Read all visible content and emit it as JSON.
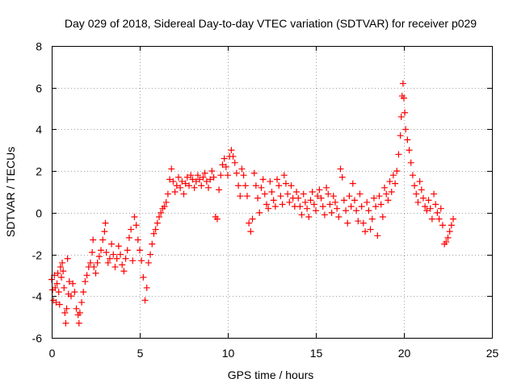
{
  "chart_data": {
    "type": "scatter",
    "title": "Day 029 of 2018, Sidereal Day-to-day VTEC variation (SDTVAR) for receiver p029",
    "xlabel": "GPS time / hours",
    "ylabel": "SDTVAR / TECUs",
    "xlim": [
      0,
      25
    ],
    "ylim": [
      -6,
      8
    ],
    "xticks": [
      0,
      5,
      10,
      15,
      20,
      25
    ],
    "yticks": [
      -6,
      -4,
      -2,
      0,
      2,
      4,
      6,
      8
    ],
    "grid": true,
    "marker": "+",
    "color": "#ff0000",
    "series": [
      {
        "name": "SDTVAR",
        "points": [
          [
            0.0,
            -3.2
          ],
          [
            0.05,
            -3.7
          ],
          [
            0.1,
            -4.2
          ],
          [
            0.15,
            -3.0
          ],
          [
            0.2,
            -3.6
          ],
          [
            0.25,
            -4.3
          ],
          [
            0.3,
            -3.4
          ],
          [
            0.35,
            -2.9
          ],
          [
            0.4,
            -3.8
          ],
          [
            0.45,
            -4.4
          ],
          [
            0.5,
            -2.6
          ],
          [
            0.55,
            -3.1
          ],
          [
            0.6,
            -2.4
          ],
          [
            0.65,
            -2.8
          ],
          [
            0.7,
            -3.6
          ],
          [
            0.75,
            -4.8
          ],
          [
            0.8,
            -5.3
          ],
          [
            0.85,
            -4.6
          ],
          [
            0.9,
            -2.2
          ],
          [
            0.95,
            -3.9
          ],
          [
            1.0,
            -3.3
          ],
          [
            1.1,
            -4.0
          ],
          [
            1.2,
            -3.4
          ],
          [
            1.3,
            -3.8
          ],
          [
            1.4,
            -4.6
          ],
          [
            1.5,
            -4.9
          ],
          [
            1.55,
            -5.3
          ],
          [
            1.6,
            -4.8
          ],
          [
            1.7,
            -4.3
          ],
          [
            1.8,
            -3.8
          ],
          [
            1.9,
            -3.3
          ],
          [
            2.0,
            -3.0
          ],
          [
            2.1,
            -2.6
          ],
          [
            2.2,
            -2.4
          ],
          [
            2.3,
            -1.9
          ],
          [
            2.35,
            -1.3
          ],
          [
            2.4,
            -2.6
          ],
          [
            2.5,
            -2.9
          ],
          [
            2.6,
            -2.4
          ],
          [
            2.7,
            -2.1
          ],
          [
            2.8,
            -1.8
          ],
          [
            2.9,
            -1.3
          ],
          [
            3.0,
            -0.9
          ],
          [
            3.05,
            -0.5
          ],
          [
            3.1,
            -1.9
          ],
          [
            3.2,
            -2.4
          ],
          [
            3.3,
            -2.2
          ],
          [
            3.4,
            -1.5
          ],
          [
            3.5,
            -2.0
          ],
          [
            3.6,
            -2.6
          ],
          [
            3.7,
            -2.2
          ],
          [
            3.8,
            -1.6
          ],
          [
            3.9,
            -2.0
          ],
          [
            4.0,
            -2.5
          ],
          [
            4.1,
            -2.8
          ],
          [
            4.2,
            -2.2
          ],
          [
            4.3,
            -1.8
          ],
          [
            4.4,
            -1.2
          ],
          [
            4.5,
            -0.8
          ],
          [
            4.6,
            -2.3
          ],
          [
            4.7,
            -0.2
          ],
          [
            4.8,
            -0.6
          ],
          [
            4.9,
            -1.3
          ],
          [
            5.0,
            -1.8
          ],
          [
            5.1,
            -2.3
          ],
          [
            5.2,
            -3.1
          ],
          [
            5.3,
            -4.2
          ],
          [
            5.4,
            -3.6
          ],
          [
            5.5,
            -2.4
          ],
          [
            5.6,
            -2.0
          ],
          [
            5.7,
            -1.5
          ],
          [
            5.8,
            -1.0
          ],
          [
            5.9,
            -0.8
          ],
          [
            6.0,
            -0.5
          ],
          [
            6.1,
            -0.2
          ],
          [
            6.2,
            0.0
          ],
          [
            6.3,
            0.2
          ],
          [
            6.4,
            0.3
          ],
          [
            6.5,
            0.5
          ],
          [
            6.6,
            0.9
          ],
          [
            6.7,
            1.6
          ],
          [
            6.8,
            2.1
          ],
          [
            6.9,
            1.5
          ],
          [
            7.0,
            1.0
          ],
          [
            7.1,
            1.3
          ],
          [
            7.2,
            1.7
          ],
          [
            7.3,
            1.2
          ],
          [
            7.4,
            1.5
          ],
          [
            7.5,
            0.9
          ],
          [
            7.6,
            1.4
          ],
          [
            7.7,
            1.7
          ],
          [
            7.8,
            1.3
          ],
          [
            7.9,
            1.8
          ],
          [
            8.0,
            1.6
          ],
          [
            8.1,
            1.2
          ],
          [
            8.2,
            1.5
          ],
          [
            8.3,
            1.8
          ],
          [
            8.4,
            1.6
          ],
          [
            8.5,
            1.3
          ],
          [
            8.6,
            1.7
          ],
          [
            8.7,
            1.9
          ],
          [
            8.8,
            1.5
          ],
          [
            8.9,
            1.2
          ],
          [
            9.0,
            1.6
          ],
          [
            9.1,
            2.0
          ],
          [
            9.2,
            1.7
          ],
          [
            9.3,
            -0.2
          ],
          [
            9.4,
            -0.3
          ],
          [
            9.5,
            1.1
          ],
          [
            9.6,
            1.8
          ],
          [
            9.7,
            2.3
          ],
          [
            9.8,
            2.6
          ],
          [
            9.9,
            2.2
          ],
          [
            10.0,
            1.8
          ],
          [
            10.1,
            2.7
          ],
          [
            10.2,
            3.0
          ],
          [
            10.3,
            2.7
          ],
          [
            10.4,
            2.4
          ],
          [
            10.5,
            1.9
          ],
          [
            10.6,
            1.3
          ],
          [
            10.7,
            0.8
          ],
          [
            10.8,
            2.1
          ],
          [
            10.9,
            1.8
          ],
          [
            11.0,
            1.3
          ],
          [
            11.1,
            0.8
          ],
          [
            11.2,
            -0.5
          ],
          [
            11.3,
            -0.9
          ],
          [
            11.4,
            -0.3
          ],
          [
            11.5,
            1.9
          ],
          [
            11.6,
            1.3
          ],
          [
            11.7,
            0.7
          ],
          [
            11.8,
            0.0
          ],
          [
            11.9,
            1.2
          ],
          [
            12.0,
            1.6
          ],
          [
            12.1,
            0.9
          ],
          [
            12.2,
            0.4
          ],
          [
            12.3,
            0.2
          ],
          [
            12.4,
            1.5
          ],
          [
            12.5,
            1.0
          ],
          [
            12.6,
            0.6
          ],
          [
            12.7,
            0.3
          ],
          [
            12.8,
            1.6
          ],
          [
            12.9,
            1.3
          ],
          [
            13.0,
            0.8
          ],
          [
            13.1,
            0.4
          ],
          [
            13.2,
            1.8
          ],
          [
            13.3,
            1.4
          ],
          [
            13.4,
            0.9
          ],
          [
            13.5,
            0.5
          ],
          [
            13.6,
            1.3
          ],
          [
            13.7,
            0.7
          ],
          [
            13.8,
            0.3
          ],
          [
            13.9,
            1.0
          ],
          [
            14.0,
            0.7
          ],
          [
            14.1,
            0.3
          ],
          [
            14.2,
            -0.1
          ],
          [
            14.3,
            0.9
          ],
          [
            14.4,
            0.5
          ],
          [
            14.5,
            0.2
          ],
          [
            14.6,
            -0.2
          ],
          [
            14.7,
            0.6
          ],
          [
            14.8,
            1.0
          ],
          [
            14.9,
            0.4
          ],
          [
            15.0,
            0.1
          ],
          [
            15.1,
            0.8
          ],
          [
            15.2,
            1.1
          ],
          [
            15.3,
            0.7
          ],
          [
            15.4,
            0.3
          ],
          [
            15.5,
            -0.1
          ],
          [
            15.6,
            1.2
          ],
          [
            15.7,
            0.9
          ],
          [
            15.8,
            0.4
          ],
          [
            15.9,
            0.0
          ],
          [
            16.0,
            0.8
          ],
          [
            16.1,
            0.5
          ],
          [
            16.2,
            0.2
          ],
          [
            16.3,
            -0.2
          ],
          [
            16.4,
            2.1
          ],
          [
            16.5,
            1.7
          ],
          [
            16.6,
            0.6
          ],
          [
            16.7,
            0.1
          ],
          [
            16.8,
            -0.5
          ],
          [
            16.9,
            0.8
          ],
          [
            17.0,
            0.3
          ],
          [
            17.1,
            1.4
          ],
          [
            17.2,
            0.6
          ],
          [
            17.3,
            0.1
          ],
          [
            17.4,
            -0.4
          ],
          [
            17.5,
            0.9
          ],
          [
            17.6,
            0.3
          ],
          [
            17.7,
            -0.5
          ],
          [
            17.8,
            -0.9
          ],
          [
            17.9,
            0.5
          ],
          [
            18.0,
            0.1
          ],
          [
            18.1,
            -0.8
          ],
          [
            18.2,
            -0.3
          ],
          [
            18.3,
            0.7
          ],
          [
            18.4,
            0.3
          ],
          [
            18.5,
            -1.1
          ],
          [
            18.6,
            0.8
          ],
          [
            18.7,
            0.4
          ],
          [
            18.8,
            -0.2
          ],
          [
            18.9,
            1.2
          ],
          [
            19.0,
            0.9
          ],
          [
            19.1,
            0.6
          ],
          [
            19.2,
            1.5
          ],
          [
            19.3,
            1.0
          ],
          [
            19.4,
            1.8
          ],
          [
            19.5,
            1.4
          ],
          [
            19.6,
            2.0
          ],
          [
            19.7,
            2.8
          ],
          [
            19.8,
            3.7
          ],
          [
            19.85,
            4.6
          ],
          [
            19.9,
            5.6
          ],
          [
            19.95,
            6.2
          ],
          [
            20.0,
            5.5
          ],
          [
            20.05,
            4.8
          ],
          [
            20.1,
            4.0
          ],
          [
            20.2,
            3.5
          ],
          [
            20.3,
            3.0
          ],
          [
            20.4,
            2.4
          ],
          [
            20.5,
            1.8
          ],
          [
            20.6,
            1.3
          ],
          [
            20.7,
            0.9
          ],
          [
            20.8,
            0.5
          ],
          [
            20.9,
            1.5
          ],
          [
            21.0,
            1.1
          ],
          [
            21.1,
            0.7
          ],
          [
            21.2,
            0.3
          ],
          [
            21.3,
            0.1
          ],
          [
            21.4,
            0.6
          ],
          [
            21.5,
            0.2
          ],
          [
            21.6,
            -0.3
          ],
          [
            21.7,
            0.9
          ],
          [
            21.8,
            0.4
          ],
          [
            21.9,
            0.0
          ],
          [
            22.0,
            -0.3
          ],
          [
            22.1,
            0.2
          ],
          [
            22.2,
            -0.6
          ],
          [
            22.3,
            -1.5
          ],
          [
            22.4,
            -1.4
          ],
          [
            22.5,
            -1.2
          ],
          [
            22.6,
            -0.9
          ],
          [
            22.7,
            -0.6
          ],
          [
            22.8,
            -0.3
          ]
        ]
      }
    ]
  }
}
